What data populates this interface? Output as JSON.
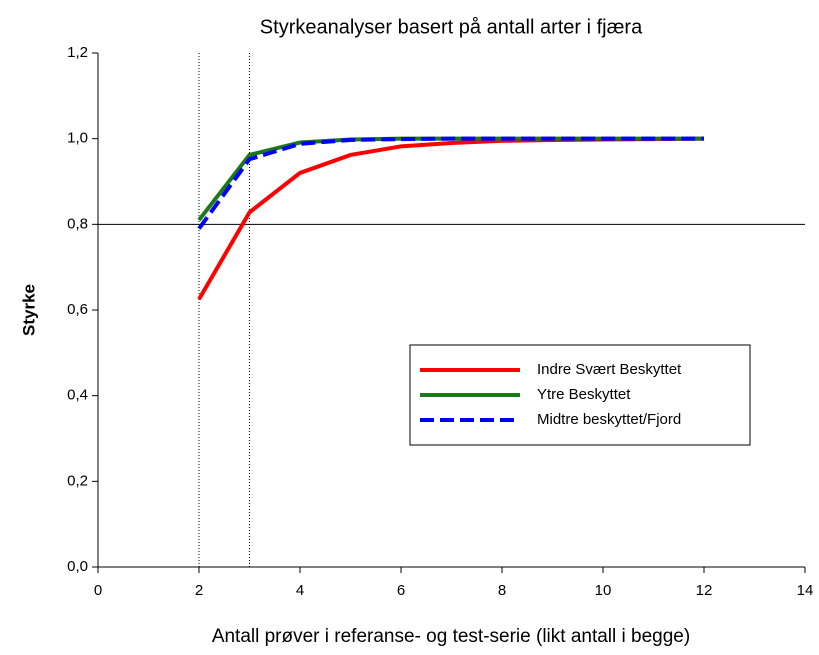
{
  "chart_data": {
    "type": "line",
    "title": "Styrkeanalyser basert på antall arter i fjæra",
    "xlabel": "Antall prøver i referanse- og test-serie (likt antall i begge)",
    "ylabel": "Styrke",
    "x": [
      2,
      3,
      4,
      5,
      6,
      7,
      8,
      9,
      10,
      11,
      12
    ],
    "series": [
      {
        "name": "Indre Svært  Beskyttet",
        "color": "#ff0000",
        "dash": false,
        "values": [
          0.625,
          0.828,
          0.92,
          0.962,
          0.982,
          0.99,
          0.995,
          0.997,
          0.998,
          0.999,
          1.0
        ]
      },
      {
        "name": "Ytre Beskyttet",
        "color": "#1a7a1a",
        "dash": false,
        "values": [
          0.81,
          0.962,
          0.991,
          0.998,
          1.0,
          1.0,
          1.0,
          1.0,
          1.0,
          1.0,
          1.0
        ]
      },
      {
        "name": "Midtre beskyttet/Fjord",
        "color": "#0000ff",
        "dash": true,
        "values": [
          0.79,
          0.952,
          0.988,
          0.997,
          0.999,
          1.0,
          1.0,
          1.0,
          1.0,
          1.0,
          1.0
        ]
      }
    ],
    "xlim": [
      0,
      14
    ],
    "xticks": [
      0,
      2,
      4,
      6,
      8,
      10,
      12,
      14
    ],
    "ylim": [
      0,
      1.2
    ],
    "yticks": [
      {
        "value": 0,
        "label": "0,0"
      },
      {
        "value": 0.2,
        "label": "0,2"
      },
      {
        "value": 0.4,
        "label": "0,4"
      },
      {
        "value": 0.6,
        "label": "0,6"
      },
      {
        "value": 0.8,
        "label": "0,8"
      },
      {
        "value": 1.0,
        "label": "1,0"
      },
      {
        "value": 1.2,
        "label": "1,2"
      }
    ],
    "hlines": [
      0.8
    ],
    "vlines": [
      2,
      3
    ]
  }
}
